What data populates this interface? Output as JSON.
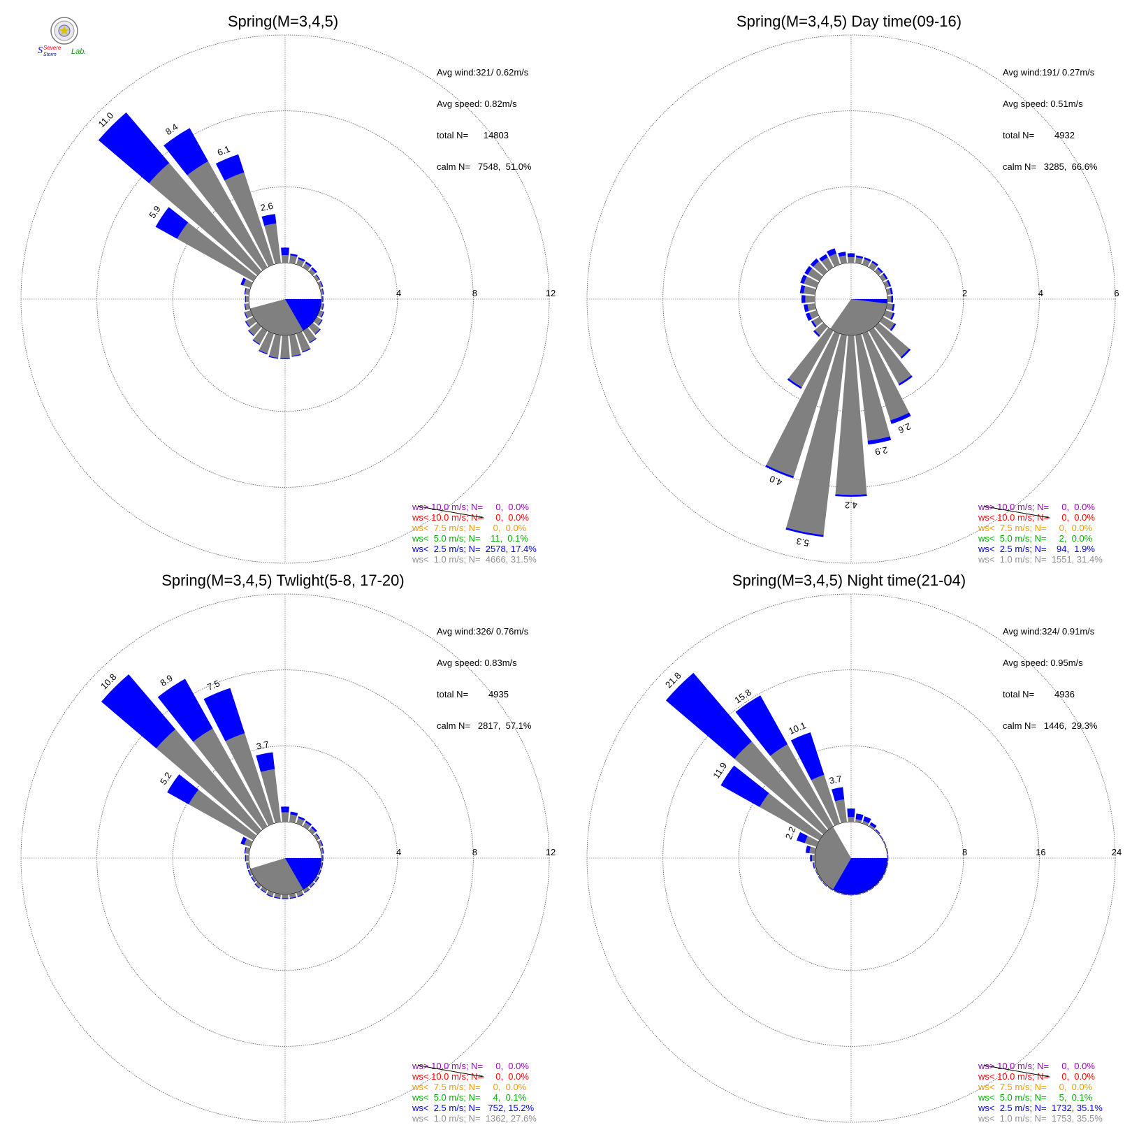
{
  "logo": {
    "text_severe": "Severe",
    "text_storm": "Storm",
    "text_lab": "Lab."
  },
  "colors": {
    "gray": "#808080",
    "blue": "#0000ff",
    "green": "#00b000",
    "orange": "#ff9900",
    "red": "#ff0000",
    "purple": "#a000c8",
    "legend_gray": "#909090"
  },
  "chart_data": [
    {
      "type": "polar-bar",
      "title": "Spring(M=3,4,5)",
      "rmax": 12,
      "rings": [
        4,
        8,
        12
      ],
      "stats": {
        "avg_wind": "Avg wind:321/ 0.62m/s",
        "avg_speed": "Avg speed: 0.82m/s",
        "total": "total N=      14803",
        "calm": "calm N=   7548,  51.0%"
      },
      "labels": [
        {
          "dir": 315,
          "text": "11.0"
        },
        {
          "dir": 326.25,
          "text": "8.4"
        },
        {
          "dir": 337.5,
          "text": "6.1"
        },
        {
          "dir": 303.75,
          "text": "5.9"
        },
        {
          "dir": 348.75,
          "text": "2.6"
        }
      ],
      "calm_sector": {
        "gray": [
          100,
          255
        ],
        "blue": [
          90,
          150
        ]
      },
      "bars": [
        {
          "dir": 0,
          "gray": 0.4,
          "blue": 0.4
        },
        {
          "dir": 11.25,
          "gray": 0.4,
          "blue": 0.1
        },
        {
          "dir": 22.5,
          "gray": 0.3,
          "blue": 0.1
        },
        {
          "dir": 33.75,
          "gray": 0.25,
          "blue": 0.1
        },
        {
          "dir": 45,
          "gray": 0.2,
          "blue": 0.1
        },
        {
          "dir": 56.25,
          "gray": 0.15,
          "blue": 0.05
        },
        {
          "dir": 67.5,
          "gray": 0.15,
          "blue": 0.05
        },
        {
          "dir": 78.75,
          "gray": 0.1,
          "blue": 0.05
        },
        {
          "dir": 90,
          "gray": 0.05,
          "blue": 0.05
        },
        {
          "dir": 101.25,
          "gray": 0.1,
          "blue": 0.05
        },
        {
          "dir": 112.5,
          "gray": 0.2,
          "blue": 0.05
        },
        {
          "dir": 123.75,
          "gray": 0.3,
          "blue": 0.05
        },
        {
          "dir": 135,
          "gray": 0.5,
          "blue": 0.05
        },
        {
          "dir": 146.25,
          "gray": 0.7,
          "blue": 0.05
        },
        {
          "dir": 157.5,
          "gray": 1.0,
          "blue": 0.05
        },
        {
          "dir": 168.75,
          "gray": 1.1,
          "blue": 0.05
        },
        {
          "dir": 180,
          "gray": 1.2,
          "blue": 0.05
        },
        {
          "dir": 191.25,
          "gray": 1.2,
          "blue": 0.05
        },
        {
          "dir": 202.5,
          "gray": 1.1,
          "blue": 0.05
        },
        {
          "dir": 213.75,
          "gray": 0.8,
          "blue": 0.05
        },
        {
          "dir": 225,
          "gray": 0.6,
          "blue": 0.05
        },
        {
          "dir": 236.25,
          "gray": 0.45,
          "blue": 0.05
        },
        {
          "dir": 247.5,
          "gray": 0.3,
          "blue": 0.05
        },
        {
          "dir": 258.75,
          "gray": 0.2,
          "blue": 0.05
        },
        {
          "dir": 270,
          "gray": 0.15,
          "blue": 0.05
        },
        {
          "dir": 281.25,
          "gray": 0.2,
          "blue": 0.05
        },
        {
          "dir": 292.5,
          "gray": 0.4,
          "blue": 0.15
        },
        {
          "dir": 303.75,
          "gray": 4.6,
          "blue": 1.3
        },
        {
          "dir": 315,
          "gray": 7.5,
          "blue": 3.5
        },
        {
          "dir": 326.25,
          "gray": 6.4,
          "blue": 2.0
        },
        {
          "dir": 337.5,
          "gray": 5.1,
          "blue": 1.0
        },
        {
          "dir": 348.75,
          "gray": 2.1,
          "blue": 0.5
        }
      ],
      "legend": [
        {
          "text": "ws> 10.0 m/s; N=     0,  0.0%",
          "color": "purple"
        },
        {
          "text": "ws< 10.0 m/s; N=     0,  0.0%",
          "color": "red"
        },
        {
          "text": "ws<  7.5 m/s; N=     0,  0.0%",
          "color": "orange"
        },
        {
          "text": "ws<  5.0 m/s; N=    11,  0.1%",
          "color": "green"
        },
        {
          "text": "ws<  2.5 m/s; N=  2578, 17.4%",
          "color": "blue"
        },
        {
          "text": "ws<  1.0 m/s; N=  4666, 31.5%",
          "color": "legend_gray"
        }
      ]
    },
    {
      "type": "polar-bar",
      "title": "Spring(M=3,4,5) Day time(09-16)",
      "rmax": 6,
      "rings": [
        2,
        4,
        6
      ],
      "stats": {
        "avg_wind": "Avg wind:191/ 0.27m/s",
        "avg_speed": "Avg speed: 0.51m/s",
        "total": "total N=        4932",
        "calm": "calm N=   3285,  66.6%"
      },
      "labels": [
        {
          "dir": 191.25,
          "text": "5.3"
        },
        {
          "dir": 180,
          "text": "4.2"
        },
        {
          "dir": 202.5,
          "text": "4.0"
        },
        {
          "dir": 168.75,
          "text": "2.9"
        },
        {
          "dir": 157.5,
          "text": "2.6"
        }
      ],
      "calm_sector": {
        "gray": [
          90,
          215
        ],
        "blue": [
          90,
          97
        ]
      },
      "bars": [
        {
          "dir": 0,
          "gray": 0.15,
          "blue": 0.1
        },
        {
          "dir": 11.25,
          "gray": 0.15,
          "blue": 0.05
        },
        {
          "dir": 22.5,
          "gray": 0.15,
          "blue": 0.05
        },
        {
          "dir": 33.75,
          "gray": 0.15,
          "blue": 0.05
        },
        {
          "dir": 45,
          "gray": 0.1,
          "blue": 0.05
        },
        {
          "dir": 56.25,
          "gray": 0.1,
          "blue": 0.05
        },
        {
          "dir": 67.5,
          "gray": 0.1,
          "blue": 0.05
        },
        {
          "dir": 78.75,
          "gray": 0.1,
          "blue": 0.05
        },
        {
          "dir": 90,
          "gray": 0.1,
          "blue": 0.05
        },
        {
          "dir": 101.25,
          "gray": 0.15,
          "blue": 0.05
        },
        {
          "dir": 112.5,
          "gray": 0.2,
          "blue": 0.05
        },
        {
          "dir": 123.75,
          "gray": 0.35,
          "blue": 0.05
        },
        {
          "dir": 135,
          "gray": 1.05,
          "blue": 0.05
        },
        {
          "dir": 146.25,
          "gray": 1.6,
          "blue": 0.05
        },
        {
          "dir": 157.5,
          "gray": 2.4,
          "blue": 0.1
        },
        {
          "dir": 168.75,
          "gray": 2.8,
          "blue": 0.1
        },
        {
          "dir": 180,
          "gray": 4.2,
          "blue": 0.05
        },
        {
          "dir": 191.25,
          "gray": 5.3,
          "blue": 0.05
        },
        {
          "dir": 202.5,
          "gray": 3.95,
          "blue": 0.05
        },
        {
          "dir": 213.75,
          "gray": 1.7,
          "blue": 0.05
        },
        {
          "dir": 225,
          "gray": 0.3,
          "blue": 0.05
        },
        {
          "dir": 236.25,
          "gray": 0.2,
          "blue": 0.05
        },
        {
          "dir": 247.5,
          "gray": 0.2,
          "blue": 0.1
        },
        {
          "dir": 258.75,
          "gray": 0.2,
          "blue": 0.1
        },
        {
          "dir": 270,
          "gray": 0.25,
          "blue": 0.1
        },
        {
          "dir": 281.25,
          "gray": 0.3,
          "blue": 0.1
        },
        {
          "dir": 292.5,
          "gray": 0.35,
          "blue": 0.1
        },
        {
          "dir": 303.75,
          "gray": 0.35,
          "blue": 0.1
        },
        {
          "dir": 315,
          "gray": 0.35,
          "blue": 0.1
        },
        {
          "dir": 326.25,
          "gray": 0.3,
          "blue": 0.1
        },
        {
          "dir": 337.5,
          "gray": 0.3,
          "blue": 0.15
        },
        {
          "dir": 348.75,
          "gray": 0.2,
          "blue": 0.1
        }
      ],
      "legend": [
        {
          "text": "ws> 10.0 m/s; N=     0,  0.0%",
          "color": "purple"
        },
        {
          "text": "ws< 10.0 m/s; N=     0,  0.0%",
          "color": "red"
        },
        {
          "text": "ws<  7.5 m/s; N=     0,  0.0%",
          "color": "orange"
        },
        {
          "text": "ws<  5.0 m/s; N=     2,  0.0%",
          "color": "green"
        },
        {
          "text": "ws<  2.5 m/s; N=    94,  1.9%",
          "color": "blue"
        },
        {
          "text": "ws<  1.0 m/s; N=  1551, 31.4%",
          "color": "legend_gray"
        }
      ]
    },
    {
      "type": "polar-bar",
      "title": "Spring(M=3,4,5) Twlight(5-8, 17-20)",
      "rmax": 12,
      "rings": [
        4,
        8,
        12
      ],
      "stats": {
        "avg_wind": "Avg wind:326/ 0.76m/s",
        "avg_speed": "Avg speed: 0.83m/s",
        "total": "total N=        4935",
        "calm": "calm N=   2817,  57.1%"
      },
      "labels": [
        {
          "dir": 315,
          "text": "10.8"
        },
        {
          "dir": 326.25,
          "text": "8.9"
        },
        {
          "dir": 337.5,
          "text": "7.5"
        },
        {
          "dir": 303.75,
          "text": "5.2"
        },
        {
          "dir": 348.75,
          "text": "3.7"
        }
      ],
      "calm_sector": {
        "gray": [
          90,
          253
        ],
        "blue": [
          90,
          150
        ]
      },
      "bars": [
        {
          "dir": 0,
          "gray": 0.5,
          "blue": 0.3
        },
        {
          "dir": 11.25,
          "gray": 0.4,
          "blue": 0.15
        },
        {
          "dir": 22.5,
          "gray": 0.3,
          "blue": 0.1
        },
        {
          "dir": 33.75,
          "gray": 0.25,
          "blue": 0.1
        },
        {
          "dir": 45,
          "gray": 0.2,
          "blue": 0.1
        },
        {
          "dir": 56.25,
          "gray": 0.15,
          "blue": 0.05
        },
        {
          "dir": 67.5,
          "gray": 0.15,
          "blue": 0.05
        },
        {
          "dir": 78.75,
          "gray": 0.1,
          "blue": 0.05
        },
        {
          "dir": 90,
          "gray": 0.05,
          "blue": 0.05
        },
        {
          "dir": 101.25,
          "gray": 0.05,
          "blue": 0.05
        },
        {
          "dir": 112.5,
          "gray": 0.05,
          "blue": 0.05
        },
        {
          "dir": 123.75,
          "gray": 0.1,
          "blue": 0.05
        },
        {
          "dir": 135,
          "gray": 0.1,
          "blue": 0.05
        },
        {
          "dir": 146.25,
          "gray": 0.15,
          "blue": 0.05
        },
        {
          "dir": 157.5,
          "gray": 0.2,
          "blue": 0.05
        },
        {
          "dir": 168.75,
          "gray": 0.2,
          "blue": 0.05
        },
        {
          "dir": 180,
          "gray": 0.2,
          "blue": 0.05
        },
        {
          "dir": 191.25,
          "gray": 0.2,
          "blue": 0.05
        },
        {
          "dir": 202.5,
          "gray": 0.2,
          "blue": 0.05
        },
        {
          "dir": 213.75,
          "gray": 0.15,
          "blue": 0.05
        },
        {
          "dir": 225,
          "gray": 0.15,
          "blue": 0.05
        },
        {
          "dir": 236.25,
          "gray": 0.1,
          "blue": 0.05
        },
        {
          "dir": 247.5,
          "gray": 0.1,
          "blue": 0.05
        },
        {
          "dir": 258.75,
          "gray": 0.1,
          "blue": 0.05
        },
        {
          "dir": 270,
          "gray": 0.15,
          "blue": 0.05
        },
        {
          "dir": 281.25,
          "gray": 0.2,
          "blue": 0.05
        },
        {
          "dir": 292.5,
          "gray": 0.35,
          "blue": 0.2
        },
        {
          "dir": 303.75,
          "gray": 3.9,
          "blue": 1.3
        },
        {
          "dir": 315,
          "gray": 7.0,
          "blue": 3.8
        },
        {
          "dir": 326.25,
          "gray": 5.9,
          "blue": 3.0
        },
        {
          "dir": 337.5,
          "gray": 5.0,
          "blue": 2.5
        },
        {
          "dir": 348.75,
          "gray": 2.8,
          "blue": 0.9
        }
      ],
      "legend": [
        {
          "text": "ws> 10.0 m/s; N=     0,  0.0%",
          "color": "purple"
        },
        {
          "text": "ws< 10.0 m/s; N=     0,  0.0%",
          "color": "red"
        },
        {
          "text": "ws<  7.5 m/s; N=     0,  0.0%",
          "color": "orange"
        },
        {
          "text": "ws<  5.0 m/s; N=     4,  0.1%",
          "color": "green"
        },
        {
          "text": "ws<  2.5 m/s; N=   752, 15.2%",
          "color": "blue"
        },
        {
          "text": "ws<  1.0 m/s; N=  1362, 27.6%",
          "color": "legend_gray"
        }
      ]
    },
    {
      "type": "polar-bar",
      "title": "Spring(M=3,4,5) Night time(21-04)",
      "rmax": 24,
      "rings": [
        8,
        16,
        24
      ],
      "stats": {
        "avg_wind": "Avg wind:324/ 0.91m/s",
        "avg_speed": "Avg speed: 0.95m/s",
        "total": "total N=        4936",
        "calm": "calm N=   1446,  29.3%"
      },
      "labels": [
        {
          "dir": 315,
          "text": "21.8"
        },
        {
          "dir": 326.25,
          "text": "15.8"
        },
        {
          "dir": 303.75,
          "text": "11.9"
        },
        {
          "dir": 337.5,
          "text": "10.1"
        },
        {
          "dir": 348.75,
          "text": "3.7"
        },
        {
          "dir": 292.5,
          "text": "2.2"
        }
      ],
      "calm_sector": {
        "gray": [
          210,
          330
        ],
        "blue": [
          90,
          210
        ]
      },
      "bars": [
        {
          "dir": 0,
          "gray": 0.5,
          "blue": 0.9
        },
        {
          "dir": 11.25,
          "gray": 0.3,
          "blue": 0.6
        },
        {
          "dir": 22.5,
          "gray": 0.3,
          "blue": 0.5
        },
        {
          "dir": 33.75,
          "gray": 0.2,
          "blue": 0.3
        },
        {
          "dir": 45,
          "gray": 0.1,
          "blue": 0.1
        },
        {
          "dir": 56.25,
          "gray": 0.05,
          "blue": 0.05
        },
        {
          "dir": 67.5,
          "gray": 0.05,
          "blue": 0.05
        },
        {
          "dir": 78.75,
          "gray": 0.05,
          "blue": 0.05
        },
        {
          "dir": 90,
          "gray": 0.05,
          "blue": 0.05
        },
        {
          "dir": 101.25,
          "gray": 0.05,
          "blue": 0.05
        },
        {
          "dir": 112.5,
          "gray": 0.05,
          "blue": 0.05
        },
        {
          "dir": 123.75,
          "gray": 0.05,
          "blue": 0.05
        },
        {
          "dir": 135,
          "gray": 0.05,
          "blue": 0.05
        },
        {
          "dir": 146.25,
          "gray": 0.05,
          "blue": 0.05
        },
        {
          "dir": 157.5,
          "gray": 0.05,
          "blue": 0.05
        },
        {
          "dir": 168.75,
          "gray": 0.05,
          "blue": 0.05
        },
        {
          "dir": 180,
          "gray": 0.05,
          "blue": 0.05
        },
        {
          "dir": 191.25,
          "gray": 0.05,
          "blue": 0.05
        },
        {
          "dir": 202.5,
          "gray": 0.05,
          "blue": 0.05
        },
        {
          "dir": 213.75,
          "gray": 0.05,
          "blue": 0.05
        },
        {
          "dir": 225,
          "gray": 0.1,
          "blue": 0.05
        },
        {
          "dir": 236.25,
          "gray": 0.1,
          "blue": 0.05
        },
        {
          "dir": 247.5,
          "gray": 0.1,
          "blue": 0.05
        },
        {
          "dir": 258.75,
          "gray": 0.15,
          "blue": 0.1
        },
        {
          "dir": 270,
          "gray": 0.3,
          "blue": 0.2
        },
        {
          "dir": 281.25,
          "gray": 0.6,
          "blue": 0.4
        },
        {
          "dir": 292.5,
          "gray": 1.3,
          "blue": 0.9
        },
        {
          "dir": 303.75,
          "gray": 7.2,
          "blue": 4.7
        },
        {
          "dir": 315,
          "gray": 12.3,
          "blue": 9.5
        },
        {
          "dir": 326.25,
          "gray": 9.9,
          "blue": 5.9
        },
        {
          "dir": 337.5,
          "gray": 5.4,
          "blue": 4.7
        },
        {
          "dir": 348.75,
          "gray": 2.4,
          "blue": 1.3
        }
      ],
      "legend": [
        {
          "text": "ws> 10.0 m/s; N=     0,  0.0%",
          "color": "purple"
        },
        {
          "text": "ws< 10.0 m/s; N=     0,  0.0%",
          "color": "red"
        },
        {
          "text": "ws<  7.5 m/s; N=     0,  0.0%",
          "color": "orange"
        },
        {
          "text": "ws<  5.0 m/s; N=     5,  0.1%",
          "color": "green"
        },
        {
          "text": "ws<  2.5 m/s; N=  1732, 35.1%",
          "color": "blue"
        },
        {
          "text": "ws<  1.0 m/s; N=  1753, 35.5%",
          "color": "legend_gray"
        }
      ]
    }
  ]
}
